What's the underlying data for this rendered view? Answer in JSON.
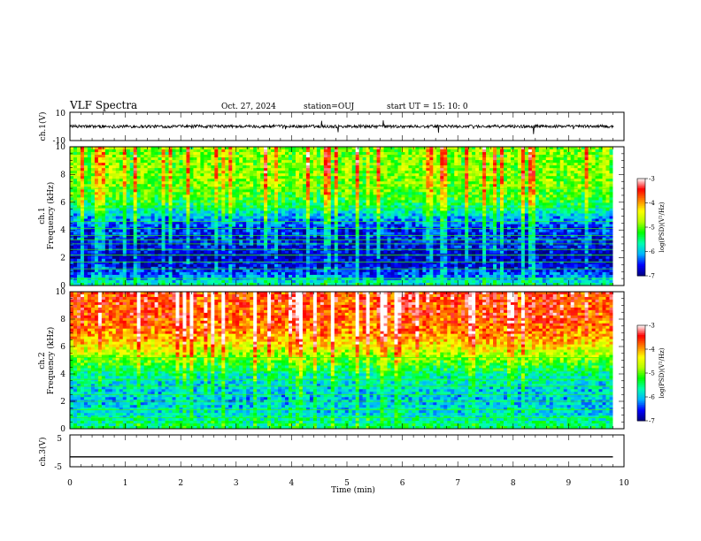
{
  "header": {
    "title": "VLF Spectra",
    "date": "Oct. 27, 2024",
    "station": "station=OUJ",
    "start": "start  UT  =   15: 10: 0"
  },
  "chart_data": [
    {
      "type": "line",
      "name": "ch1-waveform",
      "ylabel": "ch.1(V)",
      "ylim": [
        -10,
        10
      ],
      "yticks": [
        "10",
        "-10"
      ],
      "xlim": [
        0,
        10
      ],
      "mean": 0.0,
      "amplitude": 2.2
    },
    {
      "type": "heatmap",
      "name": "ch1-spectrogram",
      "ylabel_top": "ch.1",
      "ylabel": "Frequency  (kHz)",
      "ylim": [
        0,
        10
      ],
      "yticks": [
        "0",
        "2",
        "4",
        "6",
        "8",
        "10"
      ],
      "xlim": [
        0,
        9.8
      ],
      "colorbar": {
        "label": "log(PSD)(V²/Hz)",
        "range": [
          -7,
          -3
        ],
        "ticks": [
          "-3",
          "-4",
          "-5",
          "-6",
          "-7"
        ]
      },
      "profile": [
        {
          "f": 0.0,
          "v": -5.6
        },
        {
          "f": 1.0,
          "v": -6.5
        },
        {
          "f": 2.0,
          "v": -6.8
        },
        {
          "f": 3.0,
          "v": -6.6
        },
        {
          "f": 4.0,
          "v": -6.5
        },
        {
          "f": 5.0,
          "v": -6.0
        },
        {
          "f": 6.0,
          "v": -5.3
        },
        {
          "f": 7.0,
          "v": -5.0
        },
        {
          "f": 8.0,
          "v": -4.9
        },
        {
          "f": 10.0,
          "v": -4.9
        }
      ],
      "lines_khz": [
        0.5,
        1.2,
        1.7,
        2.2,
        2.6,
        3.0,
        3.3,
        3.6,
        4.1,
        4.6,
        5.6,
        7.0
      ]
    },
    {
      "type": "heatmap",
      "name": "ch2-spectrogram",
      "ylabel_top": "ch.2",
      "ylabel": "Frequency  (kHz)",
      "ylim": [
        0,
        10
      ],
      "yticks": [
        "0",
        "2",
        "4",
        "6",
        "8",
        "10"
      ],
      "xlim": [
        0,
        9.8
      ],
      "colorbar": {
        "label": "log(PSD)(V²/Hz)",
        "range": [
          -7,
          -3
        ],
        "ticks": [
          "-3",
          "-4",
          "-5",
          "-6",
          "-7"
        ]
      },
      "profile": [
        {
          "f": 0.0,
          "v": -5.4
        },
        {
          "f": 1.0,
          "v": -5.8
        },
        {
          "f": 2.0,
          "v": -6.0
        },
        {
          "f": 3.0,
          "v": -5.9
        },
        {
          "f": 4.0,
          "v": -5.6
        },
        {
          "f": 5.0,
          "v": -5.0
        },
        {
          "f": 6.0,
          "v": -4.4
        },
        {
          "f": 7.0,
          "v": -3.9
        },
        {
          "f": 8.0,
          "v": -3.7
        },
        {
          "f": 10.0,
          "v": -3.6
        }
      ],
      "lines_khz": [
        0.8,
        1.4,
        2.0,
        2.5,
        3.1,
        3.6,
        4.2,
        5.2
      ]
    },
    {
      "type": "line",
      "name": "ch3-waveform",
      "ylabel": "ch.3(V)",
      "ylim": [
        -5,
        5
      ],
      "yticks": [
        "5",
        "-5"
      ],
      "xlim": [
        0,
        9.8
      ],
      "value": -1.9
    }
  ],
  "xaxis": {
    "label": "Time  (min)",
    "ticks": [
      "0",
      "1",
      "2",
      "3",
      "4",
      "5",
      "6",
      "7",
      "8",
      "9",
      "10"
    ],
    "xlim": [
      0,
      10
    ]
  },
  "colors": {
    "scale": [
      "#000080",
      "#0000ff",
      "#00b4ff",
      "#00ffb0",
      "#00ff00",
      "#b4ff00",
      "#ffff00",
      "#ff8000",
      "#ff0000",
      "#ffffff"
    ]
  }
}
